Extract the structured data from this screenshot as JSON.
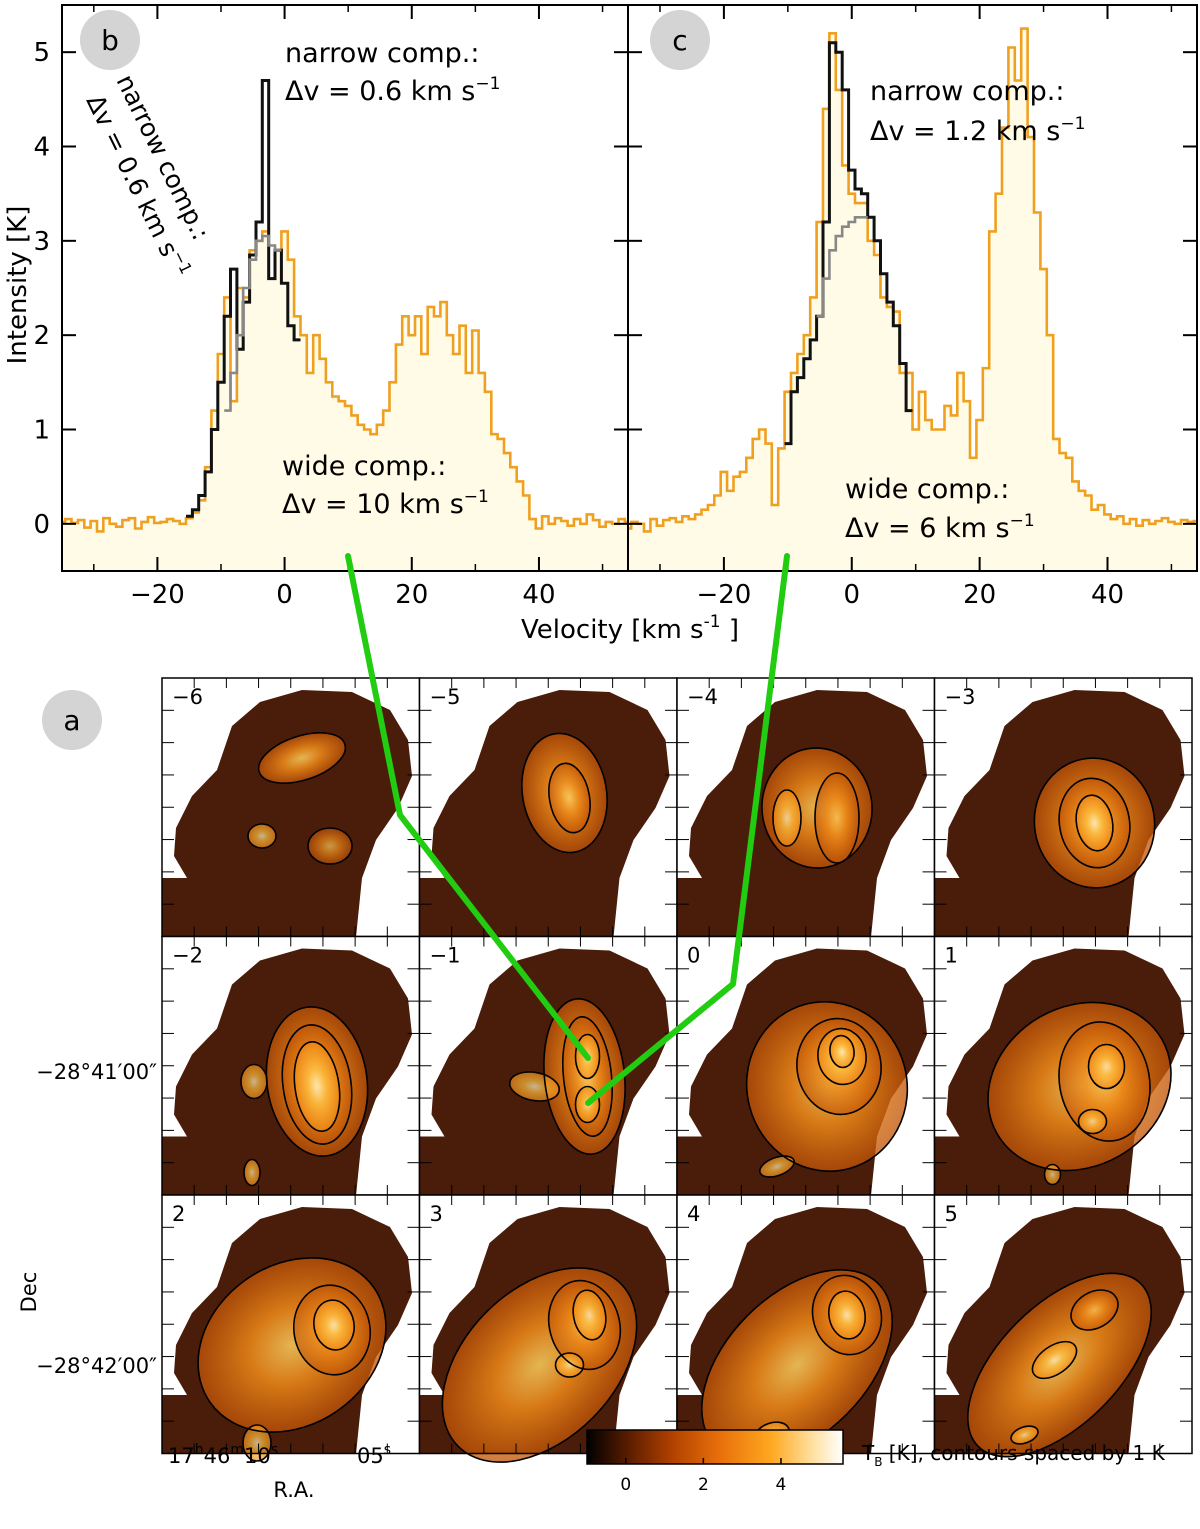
{
  "chart_data": [
    {
      "type": "line",
      "panel_label": "b",
      "xlabel": "Velocity",
      "xlabel_unit": "[km s",
      "xlabel_unit_sup": "-1",
      "xlabel_unit_end": " ]",
      "ylabel": "Intensity  [K]",
      "xlim": [
        -35,
        54
      ],
      "ylim": [
        -0.5,
        5.5
      ],
      "xticks": [
        -20,
        0,
        20,
        40
      ],
      "xtick_labels": [
        "−20",
        "0",
        "20",
        "40"
      ],
      "yticks": [
        0,
        1,
        2,
        3,
        4,
        5
      ],
      "ytick_labels": [
        "0",
        "1",
        "2",
        "3",
        "4",
        "5"
      ],
      "annotations": {
        "narrow_title": "narrow comp.:",
        "narrow_value": "Δv = 0.6 km s",
        "narrow_sup": "−1",
        "rotated_title": "narrow comp.:",
        "rotated_value": "Δv = 0.6 km s",
        "rotated_sup": "−1",
        "wide_title": "wide comp.:",
        "wide_value": "Δv = 10 km s",
        "wide_sup": "−1"
      },
      "series": [
        {
          "name": "observed spectrum",
          "color": "#f0a020",
          "fill": "#fffbe6",
          "x": [
            -35,
            -34,
            -33,
            -32,
            -31,
            -30,
            -29,
            -28,
            -27,
            -26,
            -25,
            -24,
            -23,
            -22,
            -21,
            -20,
            -19,
            -18,
            -17,
            -16,
            -15,
            -14,
            -13,
            -12,
            -11,
            -10,
            -9,
            -8,
            -7,
            -6,
            -5,
            -4,
            -3,
            -2,
            -1,
            0,
            1,
            2,
            3,
            4,
            5,
            6,
            7,
            8,
            9,
            10,
            11,
            12,
            13,
            14,
            15,
            16,
            17,
            18,
            19,
            20,
            21,
            22,
            23,
            24,
            25,
            26,
            27,
            28,
            29,
            30,
            31,
            32,
            33,
            34,
            35,
            36,
            37,
            38,
            39,
            40,
            41,
            42,
            43,
            44,
            45,
            46,
            47,
            48,
            49,
            50,
            51,
            52,
            53,
            54
          ],
          "y": [
            0.02,
            0.05,
            0.01,
            0.04,
            -0.04,
            0.03,
            -0.08,
            0.06,
            0.0,
            -0.03,
            0.04,
            0.06,
            -0.05,
            0.02,
            0.07,
            0.01,
            0.02,
            0.05,
            0.03,
            0.0,
            0.06,
            0.12,
            0.25,
            0.6,
            1.2,
            1.8,
            2.4,
            1.3,
            2.5,
            2.4,
            2.9,
            3.0,
            3.1,
            2.6,
            2.9,
            3.1,
            2.8,
            2.2,
            2.0,
            1.6,
            2.0,
            1.75,
            1.5,
            1.35,
            1.3,
            1.25,
            1.15,
            1.05,
            1.0,
            0.95,
            1.05,
            1.2,
            1.5,
            1.9,
            2.2,
            2.0,
            2.2,
            1.8,
            2.3,
            2.2,
            2.35,
            2.0,
            1.8,
            2.1,
            1.6,
            2.05,
            1.6,
            1.4,
            0.95,
            0.9,
            0.75,
            0.6,
            0.45,
            0.3,
            0.05,
            -0.05,
            0.08,
            0.0,
            0.06,
            0.03,
            -0.02,
            0.05,
            0.0,
            0.1,
            0.04,
            -0.03,
            0.02,
            0.0,
            0.05,
            0.02
          ]
        },
        {
          "name": "narrow + wide fit",
          "color": "#111111",
          "x": [
            -15,
            -14,
            -13,
            -12,
            -11,
            -10,
            -9,
            -8,
            -7,
            -6,
            -5,
            -4,
            -3,
            -2,
            -1,
            0,
            1,
            2
          ],
          "y": [
            0.08,
            0.15,
            0.3,
            0.55,
            1.0,
            1.5,
            2.2,
            2.7,
            1.85,
            2.35,
            2.85,
            3.2,
            4.7,
            2.6,
            2.9,
            2.55,
            2.1,
            1.95
          ]
        },
        {
          "name": "wide component",
          "color": "#888888",
          "x": [
            -9,
            -8,
            -7,
            -6,
            -5,
            -4,
            -3,
            -2,
            -1
          ],
          "y": [
            1.2,
            1.6,
            2.0,
            2.5,
            2.8,
            3.0,
            3.05,
            2.95,
            2.9
          ]
        }
      ]
    },
    {
      "type": "line",
      "panel_label": "c",
      "xlim": [
        -35,
        54
      ],
      "ylim": [
        -0.5,
        5.5
      ],
      "xticks": [
        -20,
        0,
        20,
        40
      ],
      "xtick_labels": [
        "−20",
        "0",
        "20",
        "40"
      ],
      "annotations": {
        "narrow_title": "narrow comp.:",
        "narrow_value": "Δv = 1.2 km s",
        "narrow_sup": "−1",
        "wide_title": "wide comp.:",
        "wide_value": "Δv = 6 km s",
        "wide_sup": "−1"
      },
      "series": [
        {
          "name": "observed spectrum",
          "color": "#f0a020",
          "fill": "#fffbe6",
          "x": [
            -35,
            -34,
            -33,
            -32,
            -31,
            -30,
            -29,
            -28,
            -27,
            -26,
            -25,
            -24,
            -23,
            -22,
            -21,
            -20,
            -19,
            -18,
            -17,
            -16,
            -15,
            -14,
            -13,
            -12,
            -11,
            -10,
            -9,
            -8,
            -7,
            -6,
            -5,
            -4,
            -3,
            -2,
            -1,
            0,
            1,
            2,
            3,
            4,
            5,
            6,
            7,
            8,
            9,
            10,
            11,
            12,
            13,
            14,
            15,
            16,
            17,
            18,
            19,
            20,
            21,
            22,
            23,
            24,
            25,
            26,
            27,
            28,
            29,
            30,
            31,
            32,
            33,
            34,
            35,
            36,
            37,
            38,
            39,
            40,
            41,
            42,
            43,
            44,
            45,
            46,
            47,
            48,
            49,
            50,
            51,
            52,
            53,
            54
          ],
          "y": [
            -0.05,
            0.02,
            0.0,
            -0.08,
            0.05,
            -0.02,
            0.04,
            0.06,
            0.02,
            0.08,
            0.05,
            0.1,
            0.15,
            0.2,
            0.3,
            0.55,
            0.35,
            0.5,
            0.55,
            0.7,
            0.9,
            1.0,
            0.85,
            0.2,
            0.8,
            1.4,
            1.6,
            1.8,
            2.0,
            2.4,
            3.2,
            4.4,
            5.2,
            4.6,
            3.8,
            3.5,
            3.4,
            3.4,
            3.0,
            2.85,
            2.4,
            2.3,
            2.25,
            1.6,
            1.6,
            1.0,
            1.4,
            1.1,
            1.0,
            1.0,
            1.25,
            1.15,
            1.6,
            1.3,
            0.7,
            1.1,
            1.65,
            3.1,
            3.5,
            4.2,
            5.05,
            4.7,
            5.25,
            4.1,
            3.3,
            2.7,
            2.0,
            0.9,
            0.75,
            0.7,
            0.45,
            0.35,
            0.3,
            0.15,
            0.2,
            0.1,
            0.05,
            0.08,
            0.0,
            0.05,
            -0.02,
            0.04,
            0.0,
            0.03,
            0.06,
            0.02,
            0.0,
            0.04,
            0.02,
            0.03
          ]
        },
        {
          "name": "narrow + wide fit",
          "color": "#111111",
          "x": [
            -10,
            -9,
            -8,
            -7,
            -6,
            -5,
            -4,
            -3,
            -2,
            -1,
            0,
            1,
            2,
            3,
            4,
            5,
            6,
            7,
            8,
            9
          ],
          "y": [
            0.85,
            1.4,
            1.55,
            1.75,
            1.95,
            2.2,
            3.2,
            5.1,
            5.0,
            4.6,
            3.75,
            3.55,
            3.5,
            3.25,
            3.0,
            2.65,
            2.35,
            2.1,
            1.7,
            1.2
          ]
        },
        {
          "name": "wide component",
          "color": "#888888",
          "x": [
            -5,
            -4,
            -3,
            -2,
            -1,
            0,
            1,
            2
          ],
          "y": [
            2.2,
            2.6,
            2.9,
            3.05,
            3.15,
            3.2,
            3.25,
            3.25
          ]
        }
      ]
    },
    {
      "type": "heatmap",
      "panel_label": "a",
      "panel_velocities": [
        "−6",
        "−5",
        "−4",
        "−3",
        "−2",
        "−1",
        "0",
        "1",
        "2",
        "3",
        "4",
        "5"
      ],
      "dec_tick_labels": [
        "−28°41′00″",
        "−28°42′00″"
      ],
      "dec_label": "Dec",
      "ra_label": "R.A.",
      "ra_tick_1": "17",
      "ra_tick_1_sup_h": "h",
      "ra_tick_1_mid": "46",
      "ra_tick_1_sup_m": "m",
      "ra_tick_1_end": "10",
      "ra_tick_1_sup_s": "s",
      "ra_tick_2": "05",
      "ra_tick_2_sup": "s",
      "colorbar": {
        "label_pre": "T",
        "label_sub": "B",
        "label_post": " [K], contours spaced by 1 K",
        "ticks": [
          0,
          2,
          4
        ],
        "tick_labels": [
          "0",
          "2",
          "4"
        ],
        "range": [
          -1,
          5.6
        ],
        "colors": [
          "#000000",
          "#5a1c00",
          "#b04000",
          "#e8700a",
          "#ffa820",
          "#ffe0a0",
          "#ffffff"
        ]
      },
      "link_color": "#22cc11"
    }
  ]
}
